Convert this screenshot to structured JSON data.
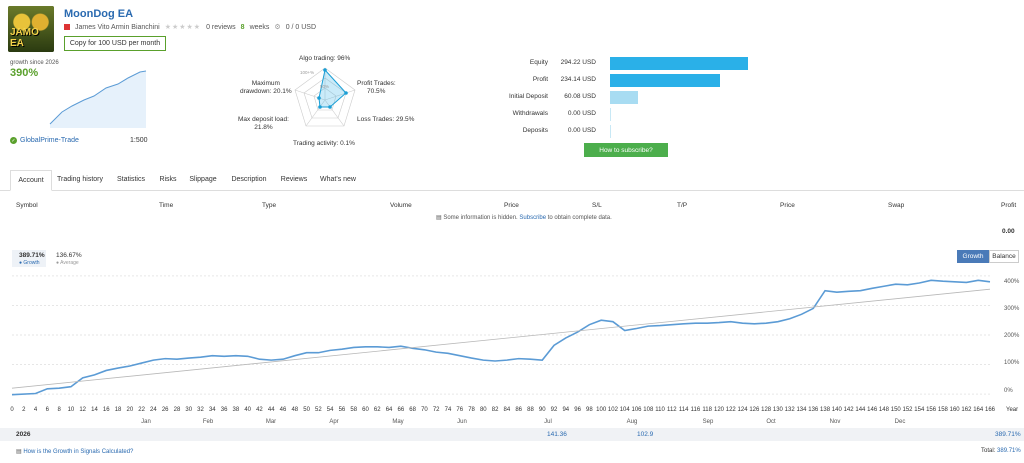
{
  "header": {
    "title": "MoonDog EA",
    "logo_text": "JAMO EA",
    "author": "James Vito Armin Bianchini",
    "reviews": "0 reviews",
    "stars": "★★★★★",
    "weeks_num": "8",
    "weeks_label": "weeks",
    "subscribers": "0 / 0 USD",
    "copy_button": "Copy for 100 USD per month"
  },
  "summary": {
    "growth_label": "growth since 2026",
    "growth_value": "390%",
    "broker": "GlobalPrime-Trade",
    "leverage": "1:500"
  },
  "radar": {
    "algo": "Algo trading: 96%",
    "profit_trades": "Profit Trades:",
    "profit_trades_v": "70.5%",
    "loss_trades": "Loss Trades: 29.5%",
    "activity": "Trading activity: 0.1%",
    "max_load": "Max deposit load:",
    "max_load_v": "21.8%",
    "drawdown": "Maximum",
    "drawdown2": "drawdown: 20.1%",
    "ring_100": "100+%",
    "ring_50": "50%"
  },
  "bars": [
    {
      "label": "Equity",
      "value": "294.22 USD",
      "amount": 294.22,
      "color": "#2ab0e8"
    },
    {
      "label": "Profit",
      "value": "234.14 USD",
      "amount": 234.14,
      "color": "#2ab0e8"
    },
    {
      "label": "Initial Deposit",
      "value": "60.08 USD",
      "amount": 60.08,
      "color": "#a8dcf2"
    },
    {
      "label": "Withdrawals",
      "value": "0.00 USD",
      "amount": 0,
      "color": "#2ab0e8"
    },
    {
      "label": "Deposits",
      "value": "0.00 USD",
      "amount": 0,
      "color": "#2ab0e8"
    }
  ],
  "subscribe_button": "How to subscribe?",
  "tabs": [
    "Account",
    "Trading history",
    "Statistics",
    "Risks",
    "Slippage",
    "Description",
    "Reviews",
    "What's new"
  ],
  "table": {
    "headers": [
      "Symbol",
      "Time",
      "Type",
      "Volume",
      "Price",
      "S/L",
      "T/P",
      "Price",
      "Swap",
      "Profit"
    ],
    "hidden_pre": "Some information is hidden.",
    "hidden_link": "Subscribe",
    "hidden_post": "to obtain complete data.",
    "total_profit": "0.00"
  },
  "growth_chart": {
    "growth_value": "389.71%",
    "growth_label": "Growth",
    "average_value": "136.67%",
    "average_label": "Average",
    "growth_button": "Growth",
    "balance_button": "Balance",
    "y_ticks": [
      "400%",
      "300%",
      "200%",
      "100%",
      "0%"
    ],
    "months": [
      "Jan",
      "Feb",
      "Mar",
      "Apr",
      "May",
      "Jun",
      "Jul",
      "Aug",
      "Sep",
      "Oct",
      "Nov",
      "Dec"
    ],
    "x_label": "Year",
    "year_row": {
      "year": "2026",
      "jul": "141.36",
      "aug": "102.9",
      "total": "389.71%",
      "total_label": "Total:"
    },
    "footer_link": "How is the Growth in Signals Calculated?"
  },
  "chart_data": {
    "type": "line",
    "x_ticks": [
      0,
      2,
      4,
      6,
      8,
      10,
      12,
      14,
      16,
      18,
      20,
      22,
      24,
      26,
      28,
      30,
      32,
      34,
      36,
      38,
      40,
      42,
      44,
      46,
      48,
      50,
      52,
      54,
      56,
      58,
      60,
      62,
      64,
      66,
      68,
      70,
      72,
      74,
      76,
      78,
      80,
      82,
      84,
      86,
      88,
      90,
      92,
      94,
      96,
      98,
      100,
      102,
      104,
      106,
      108,
      110,
      112,
      114,
      116,
      118,
      120,
      122,
      124,
      126,
      128,
      130,
      132,
      134,
      136,
      138,
      140,
      142,
      144,
      146,
      148,
      150,
      152,
      154,
      156,
      158,
      160,
      162,
      164,
      166
    ],
    "xlabel": "Year",
    "ylim": [
      -20,
      420
    ],
    "series": [
      {
        "name": "Growth",
        "x": [
          0,
          4,
          6,
          8,
          10,
          12,
          14,
          16,
          18,
          20,
          22,
          24,
          26,
          28,
          30,
          32,
          34,
          36,
          38,
          40,
          42,
          44,
          46,
          48,
          50,
          52,
          54,
          56,
          58,
          60,
          62,
          64,
          66,
          68,
          70,
          72,
          74,
          76,
          78,
          80,
          82,
          84,
          86,
          88,
          90,
          92,
          94,
          96,
          98,
          100,
          102,
          104,
          106,
          108,
          110,
          112,
          114,
          116,
          118,
          120,
          122,
          124,
          126,
          128,
          130,
          132,
          134,
          136,
          138,
          140,
          142,
          144,
          146,
          148,
          150,
          152,
          154,
          156,
          158,
          160,
          162,
          164,
          166
        ],
        "values": [
          -2,
          2,
          18,
          20,
          25,
          55,
          65,
          80,
          88,
          95,
          105,
          115,
          120,
          118,
          122,
          125,
          130,
          128,
          130,
          128,
          118,
          115,
          118,
          130,
          140,
          140,
          148,
          152,
          158,
          160,
          160,
          158,
          162,
          155,
          150,
          142,
          138,
          130,
          122,
          115,
          112,
          115,
          120,
          118,
          115,
          165,
          190,
          210,
          235,
          250,
          245,
          215,
          222,
          230,
          232,
          235,
          238,
          240,
          240,
          242,
          245,
          240,
          238,
          240,
          245,
          255,
          270,
          290,
          350,
          345,
          348,
          350,
          358,
          365,
          372,
          370,
          376,
          385,
          382,
          380,
          378,
          385,
          380
        ]
      },
      {
        "name": "Trend",
        "x": [
          0,
          166
        ],
        "values": [
          20,
          355
        ]
      }
    ]
  }
}
